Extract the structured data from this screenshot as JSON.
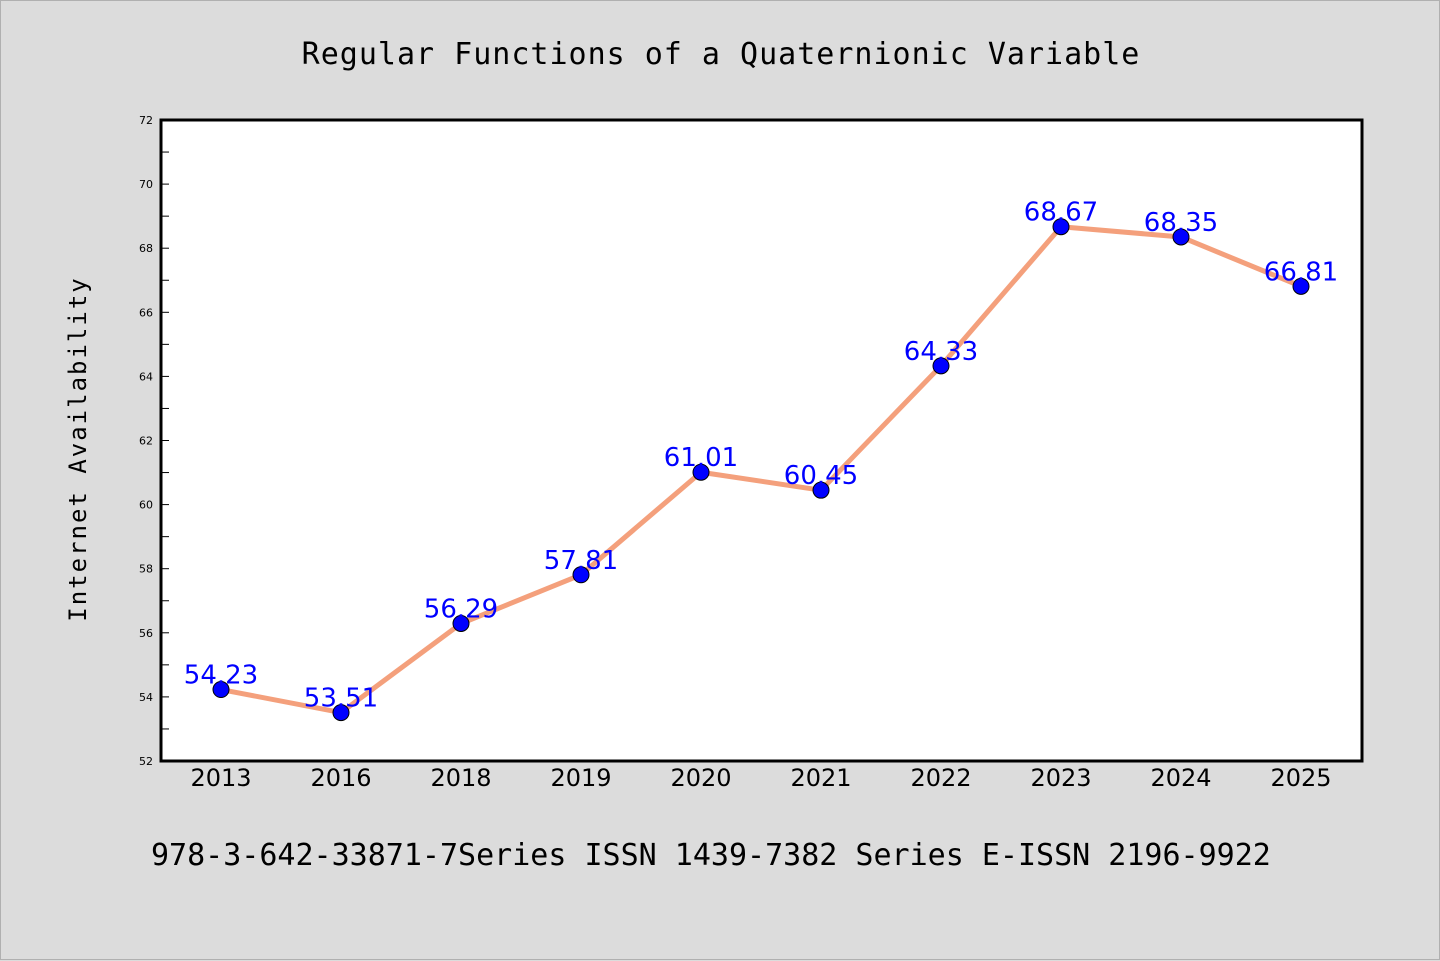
{
  "chart_data": {
    "type": "line",
    "title": "Regular Functions of a Quaternionic Variable",
    "ylabel": "Internet Availability",
    "xlabel": "",
    "categories": [
      "2013",
      "2016",
      "2018",
      "2019",
      "2020",
      "2021",
      "2022",
      "2023",
      "2024",
      "2025"
    ],
    "series": [
      {
        "values": [
          54.23,
          53.51,
          56.29,
          57.81,
          61.01,
          60.45,
          64.33,
          68.67,
          68.35,
          66.81
        ],
        "data_labels": [
          "54.23",
          "53.51",
          "56.29",
          "57.81",
          "61.01",
          "60.45",
          "64.33",
          "68.67",
          "68.35",
          "66.81"
        ],
        "line_color": "#f4a07c",
        "marker_color": "#0000ff"
      }
    ],
    "ylim": [
      52,
      72
    ],
    "yticks": [
      "52",
      "54",
      "56",
      "58",
      "60",
      "62",
      "64",
      "66",
      "68",
      "70",
      "72"
    ],
    "grid": false,
    "legend": false
  },
  "footer": "978-3-642-33871-7Series ISSN 1439-7382 Series E-ISSN 2196-9922",
  "colors": {
    "background": "#dcdcdc",
    "plot_background": "#ffffff",
    "label_color": "#0000ff"
  }
}
